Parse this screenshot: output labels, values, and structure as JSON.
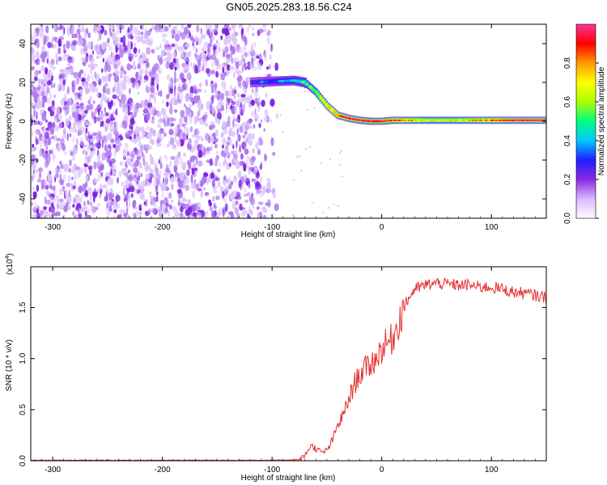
{
  "figure": {
    "title": "GN05.2025.283.18.56.C24"
  },
  "colors": {
    "snr_line": "#e53030",
    "scatter_purple": "#7a1fe0",
    "colormap": [
      "#ffffff",
      "#d9b8ff",
      "#8a2be2",
      "#1f1fff",
      "#00c8ff",
      "#00ff7f",
      "#aaff00",
      "#ffff00",
      "#ff9900",
      "#ff0000",
      "#ff3399"
    ]
  },
  "chart_data": [
    {
      "type": "heatmap",
      "title": "",
      "xlabel": "Height of straight line (km)",
      "ylabel": "Frequency (Hz)",
      "xlim": [
        -320,
        150
      ],
      "ylim": [
        -50,
        50
      ],
      "x_ticks": [
        "-300",
        "-200",
        "-100",
        "0",
        "100"
      ],
      "x_tick_values": [
        -300,
        -200,
        -100,
        0,
        100
      ],
      "y_ticks": [
        "-40",
        "-20",
        "0",
        "20",
        "40"
      ],
      "y_tick_values": [
        -40,
        -20,
        0,
        20,
        40
      ],
      "noise_region_x": [
        -320,
        -95
      ],
      "ridge": {
        "x": [
          -120,
          -100,
          -80,
          -70,
          -60,
          -50,
          -40,
          -30,
          -20,
          -10,
          0,
          10,
          20,
          40,
          60,
          80,
          100,
          120,
          150
        ],
        "y": [
          20,
          20.5,
          21,
          20,
          15,
          8,
          3,
          1.5,
          0.5,
          0,
          0,
          0.5,
          0.5,
          0.5,
          0.5,
          0.5,
          0.5,
          0.5,
          0.5
        ],
        "amplitude": [
          0.3,
          0.35,
          0.4,
          0.5,
          0.6,
          0.75,
          0.85,
          0.95,
          0.95,
          0.98,
          0.95,
          0.9,
          0.85,
          0.7,
          0.7,
          0.75,
          0.85,
          0.95,
          0.95
        ]
      },
      "colorbar": {
        "label": "Normalized spectral amplitude",
        "range": [
          0,
          1
        ],
        "ticks": [
          "0.0",
          "0.2",
          "0.4",
          "0.6",
          "0.8"
        ],
        "tick_values": [
          0,
          0.2,
          0.4,
          0.6,
          0.8
        ]
      }
    },
    {
      "type": "line",
      "title": "",
      "xlabel": "Height of straight line (km)",
      "ylabel": "SNR (10 * v/v)",
      "y_scale_label": "(x10",
      "y_scale_exp": "4",
      "y_scale_close": ")",
      "xlim": [
        -320,
        150
      ],
      "ylim": [
        0,
        1.9
      ],
      "x_ticks": [
        "-300",
        "-200",
        "-100",
        "0",
        "100"
      ],
      "x_tick_values": [
        -300,
        -200,
        -100,
        0,
        100
      ],
      "y_ticks": [
        "0.0",
        "0.5",
        "1.0",
        "1.5"
      ],
      "y_tick_values": [
        0,
        0.5,
        1.0,
        1.5
      ],
      "series": [
        {
          "x": [
            -320,
            -200,
            -100,
            -75,
            -70,
            -65,
            -60,
            -55,
            -50,
            -45,
            -40,
            -35,
            -30,
            -25,
            -20,
            -15,
            -10,
            -5,
            0,
            5,
            10,
            15,
            20,
            25,
            30,
            40,
            50,
            60,
            70,
            80,
            90,
            100,
            110,
            120,
            130,
            140,
            150
          ],
          "y": [
            0.005,
            0.005,
            0.005,
            0.01,
            0.05,
            0.15,
            0.12,
            0.08,
            0.1,
            0.2,
            0.35,
            0.45,
            0.6,
            0.75,
            0.85,
            0.9,
            0.95,
            1.0,
            1.1,
            1.15,
            1.2,
            1.35,
            1.5,
            1.6,
            1.68,
            1.72,
            1.74,
            1.73,
            1.72,
            1.72,
            1.7,
            1.7,
            1.68,
            1.65,
            1.64,
            1.62,
            1.6
          ]
        }
      ]
    }
  ]
}
